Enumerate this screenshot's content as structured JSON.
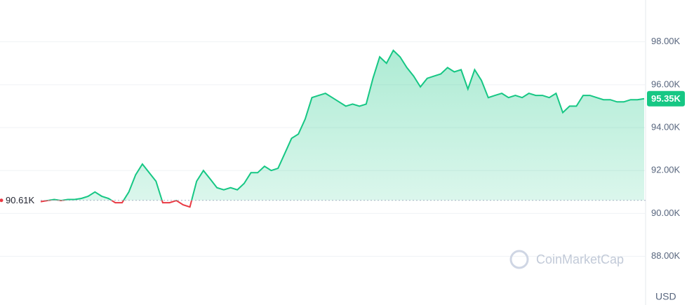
{
  "chart_data": {
    "type": "line",
    "series": [
      {
        "color": "#16c784",
        "down_color": "#ea3943",
        "values": [
          90550,
          90600,
          90650,
          90600,
          90650,
          90650,
          90700,
          90800,
          91000,
          90800,
          90700,
          90500,
          90500,
          91000,
          91800,
          92300,
          91900,
          91500,
          90500,
          90500,
          90600,
          90400,
          90300,
          91500,
          92000,
          91600,
          91200,
          91100,
          91200,
          91100,
          91400,
          91900,
          91900,
          92200,
          92000,
          92100,
          92800,
          93500,
          93700,
          94400,
          95400,
          95500,
          95600,
          95400,
          95200,
          95000,
          95100,
          95000,
          95100,
          96300,
          97300,
          97000,
          97600,
          97300,
          96800,
          96400,
          95900,
          96300,
          96400,
          96500,
          96800,
          96600,
          96700,
          95800,
          96700,
          96200,
          95400,
          95500,
          95600,
          95400,
          95500,
          95400,
          95600,
          95500,
          95500,
          95400,
          95600,
          94700,
          95000,
          95000,
          95500,
          95500,
          95400,
          95300,
          95300,
          95200,
          95200,
          95300,
          95300,
          95350
        ]
      }
    ],
    "ylim": [
      85730,
      99950
    ],
    "yticks": [
      {
        "value": 88000,
        "label": "88.00K"
      },
      {
        "value": 90000,
        "label": "90.00K"
      },
      {
        "value": 92000,
        "label": "92.00K"
      },
      {
        "value": 94000,
        "label": "94.00K"
      },
      {
        "value": 96000,
        "label": "96.00K"
      },
      {
        "value": 98000,
        "label": "98.00K"
      }
    ],
    "grid": true,
    "baseline": {
      "value": 90610,
      "label": "90.61K"
    },
    "current": {
      "value": 95350,
      "label": "95.35K"
    },
    "currency": "USD",
    "watermark": "CoinMarketCap"
  }
}
